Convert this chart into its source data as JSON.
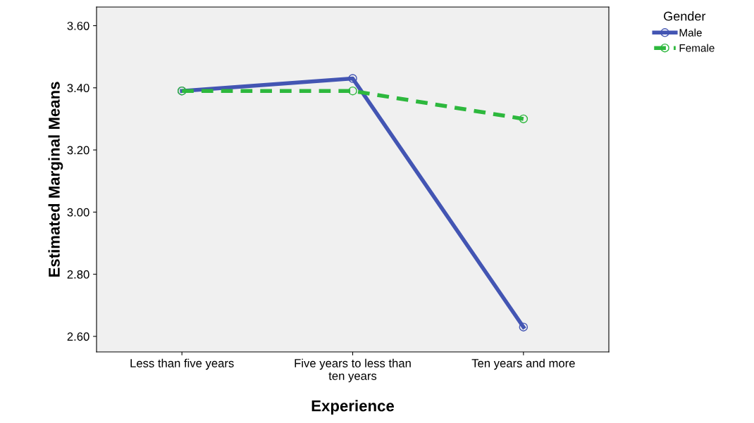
{
  "chart_data": {
    "type": "line",
    "xlabel": "Experience",
    "ylabel": "Estimated Marginal Means",
    "legend_title": "Gender",
    "categories": [
      "Less than five years",
      "Five years to less than\nten years",
      "Ten years and more"
    ],
    "series": [
      {
        "name": "Male",
        "color": "#4355b3",
        "values": [
          3.39,
          3.43,
          2.63
        ],
        "line_style": "solid"
      },
      {
        "name": "Female",
        "color": "#2db83d",
        "values": [
          3.39,
          3.39,
          3.3
        ],
        "line_style": "dashed"
      }
    ],
    "ylim": [
      2.55,
      3.66
    ],
    "yticks": [
      {
        "value": 2.6,
        "label": "2.60"
      },
      {
        "value": 2.8,
        "label": "2.80"
      },
      {
        "value": 3.0,
        "label": "3.00"
      },
      {
        "value": 3.2,
        "label": "3.20"
      },
      {
        "value": 3.4,
        "label": "3.40"
      },
      {
        "value": 3.6,
        "label": "3.60"
      }
    ],
    "marker": "circle",
    "legend": "top right",
    "grid": false
  }
}
